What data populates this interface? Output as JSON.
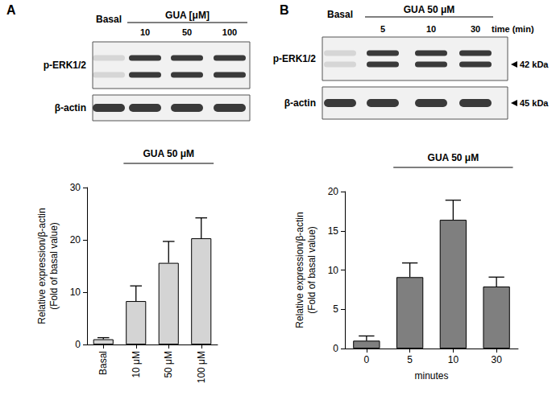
{
  "chart_data": [
    {
      "type": "bar",
      "title": "GUA 50 μM",
      "categories": [
        "Basal",
        "10 μM",
        "50 μM",
        "100 μM"
      ],
      "values": [
        1.0,
        8.3,
        15.6,
        20.3
      ],
      "errors": [
        0.3,
        2.9,
        4.1,
        3.9
      ],
      "color": "#d4d4d4",
      "ylabel": "Relative expression/β-actin\n(Fold of basal value)",
      "ylim": [
        0,
        30
      ],
      "yticks": [
        0,
        10,
        20,
        30
      ]
    },
    {
      "type": "bar",
      "title": "GUA 50 μM",
      "categories": [
        "0",
        "5",
        "10",
        "30"
      ],
      "values": [
        1.0,
        9.1,
        16.4,
        7.9
      ],
      "errors": [
        0.6,
        1.8,
        2.5,
        1.2
      ],
      "color": "#7f7f7f",
      "xlabel": "minutes",
      "ylabel": "Relative expression/β-actin\n(Fold of basal value)",
      "ylim": [
        0,
        20
      ],
      "yticks": [
        0,
        5,
        10,
        15,
        20
      ]
    }
  ],
  "blots": [
    {
      "panel": "A",
      "basal_label": "Basal",
      "treatment_label": "GUA [μM]",
      "lanes": [
        "10",
        "50",
        "100"
      ],
      "rows": [
        {
          "label": "p-ERK1/2"
        },
        {
          "label": "β-actin"
        }
      ]
    },
    {
      "panel": "B",
      "basal_label": "Basal",
      "treatment_label": "GUA 50 μM",
      "lanes": [
        "5",
        "10",
        "30"
      ],
      "lane_unit": "time (min)",
      "rows": [
        {
          "label": "p-ERK1/2",
          "size": "42 kDa"
        },
        {
          "label": "β-actin",
          "size": "45 kDa"
        }
      ]
    }
  ]
}
